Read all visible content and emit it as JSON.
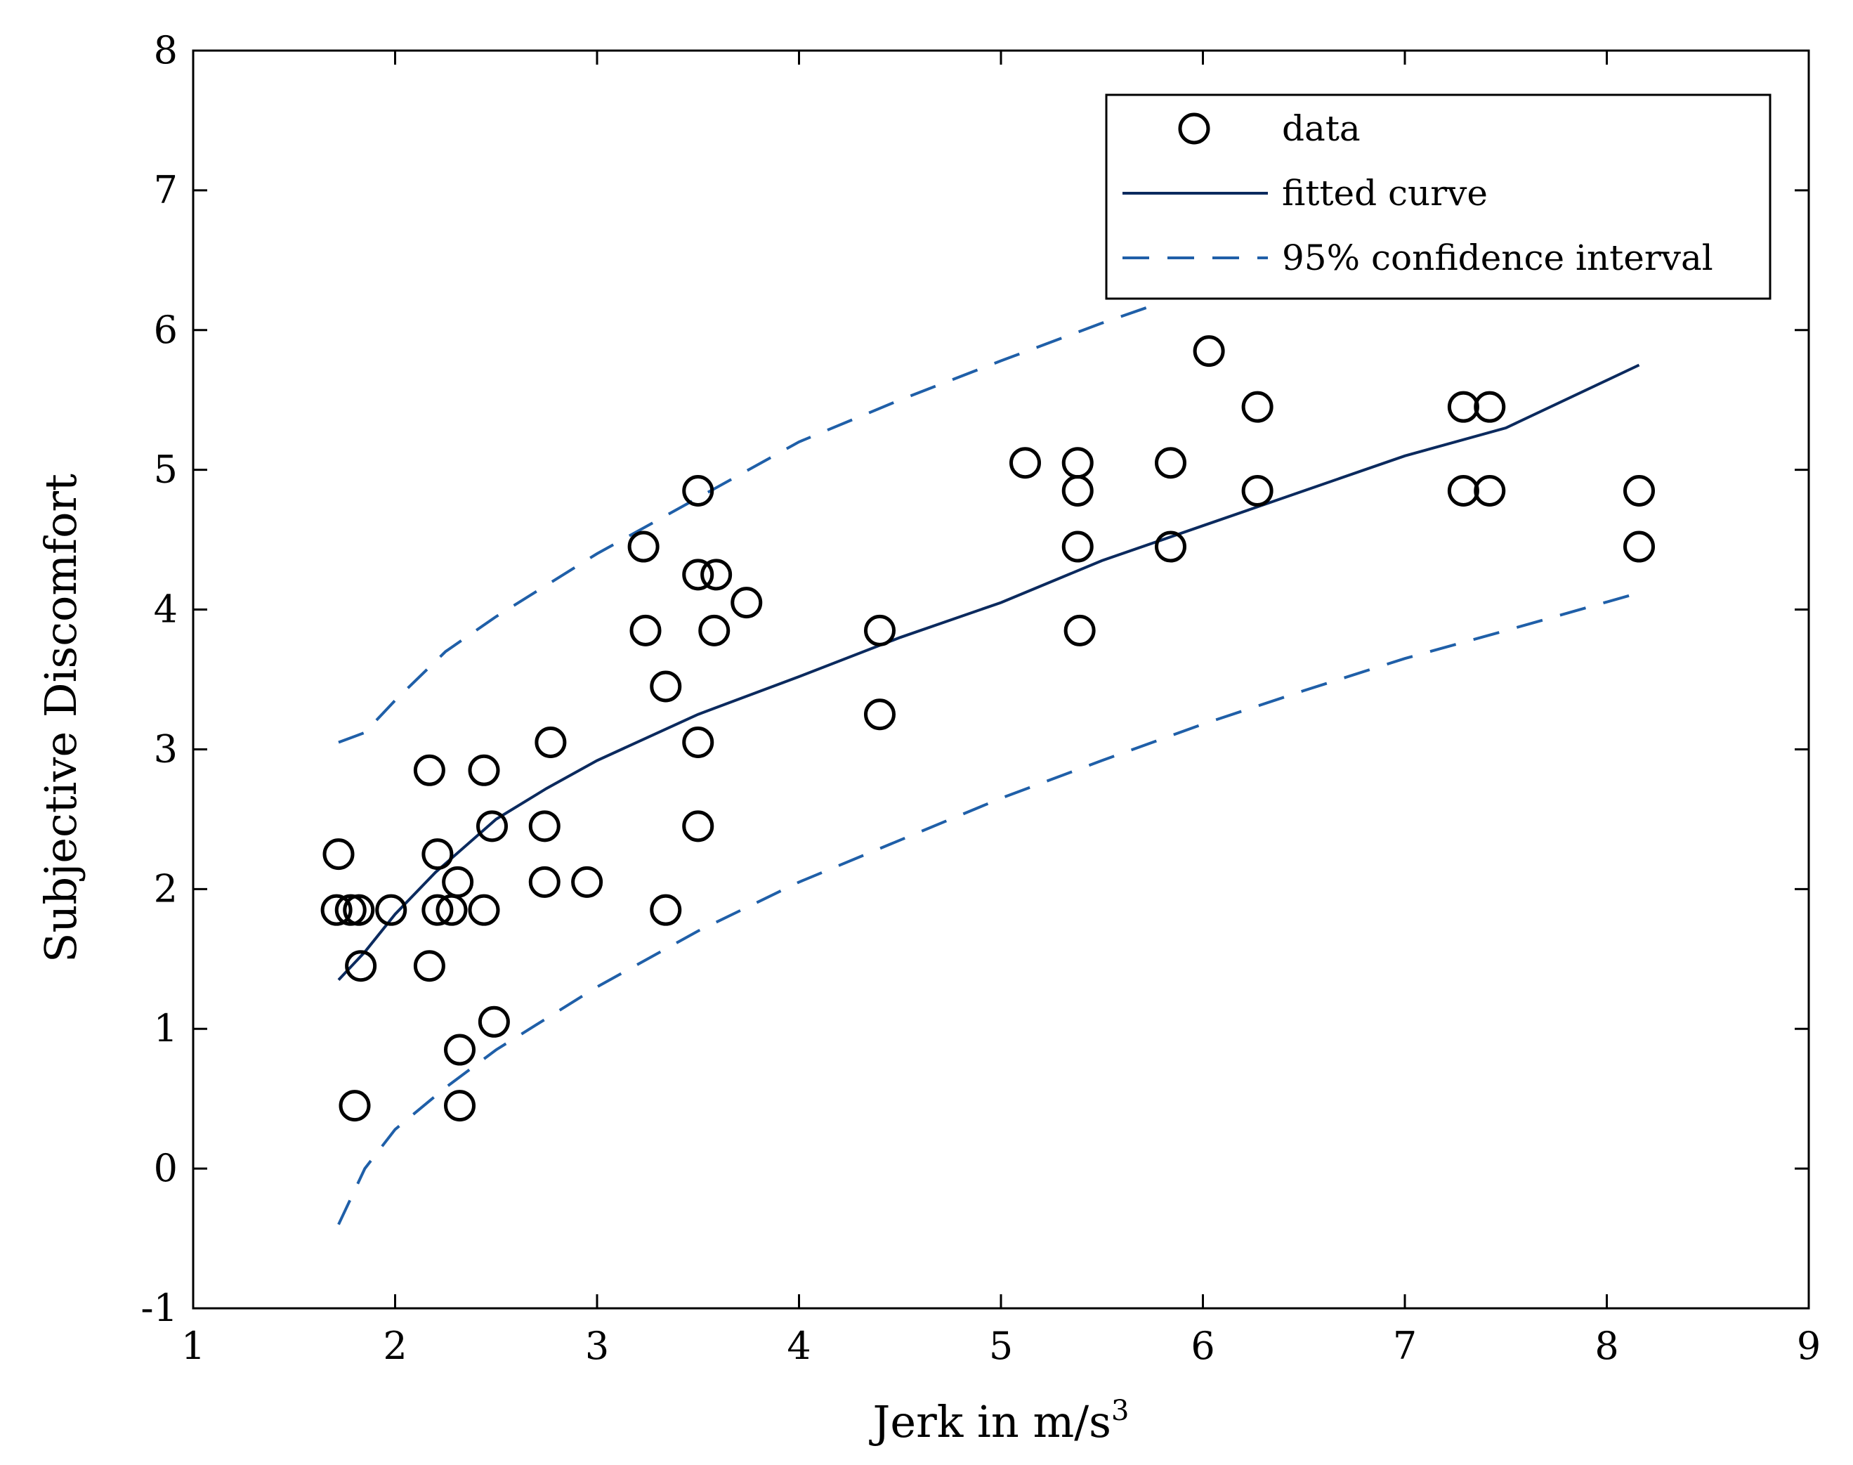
{
  "chart_data": {
    "type": "scatter",
    "title": "",
    "xlabel": "Jerk in m/s",
    "xlabel_superscript": "3",
    "ylabel": "Subjective Discomfort",
    "xlim": [
      1,
      9
    ],
    "ylim": [
      -1,
      8
    ],
    "xticks": [
      1,
      2,
      3,
      4,
      5,
      6,
      7,
      8,
      9
    ],
    "yticks": [
      -1,
      0,
      1,
      2,
      3,
      4,
      5,
      6,
      7,
      8
    ],
    "xtick_labels": [
      "1",
      "2",
      "3",
      "4",
      "5",
      "6",
      "7",
      "8",
      "9"
    ],
    "ytick_labels": [
      "-1",
      "0",
      "1",
      "2",
      "3",
      "4",
      "5",
      "6",
      "7",
      "8"
    ],
    "grid": false,
    "legend": {
      "placement": "top-right",
      "entries": [
        "data",
        "fitted curve",
        "95% confidence interval"
      ]
    },
    "colors": {
      "fit": "#0b2a5e",
      "ci": "#1f5fa8",
      "markers": "#000000"
    },
    "series": [
      {
        "name": "data",
        "style": "markers-circle",
        "points": [
          [
            1.72,
            2.25
          ],
          [
            1.71,
            1.85
          ],
          [
            1.78,
            1.85
          ],
          [
            1.82,
            1.85
          ],
          [
            1.98,
            1.85
          ],
          [
            1.83,
            1.45
          ],
          [
            1.8,
            0.45
          ],
          [
            2.17,
            2.85
          ],
          [
            2.21,
            2.25
          ],
          [
            2.21,
            1.85
          ],
          [
            2.28,
            1.85
          ],
          [
            2.31,
            2.05
          ],
          [
            2.17,
            1.45
          ],
          [
            2.32,
            0.85
          ],
          [
            2.32,
            0.45
          ],
          [
            2.44,
            2.85
          ],
          [
            2.48,
            2.45
          ],
          [
            2.44,
            1.85
          ],
          [
            2.49,
            1.05
          ],
          [
            2.74,
            2.45
          ],
          [
            2.77,
            3.05
          ],
          [
            2.74,
            2.05
          ],
          [
            2.95,
            2.05
          ],
          [
            3.23,
            4.45
          ],
          [
            3.24,
            3.85
          ],
          [
            3.34,
            3.45
          ],
          [
            3.34,
            1.85
          ],
          [
            3.5,
            4.85
          ],
          [
            3.5,
            4.25
          ],
          [
            3.59,
            4.25
          ],
          [
            3.58,
            3.85
          ],
          [
            3.74,
            4.05
          ],
          [
            3.5,
            3.05
          ],
          [
            3.5,
            2.45
          ],
          [
            4.4,
            3.85
          ],
          [
            4.4,
            3.25
          ],
          [
            5.12,
            5.05
          ],
          [
            5.38,
            5.05
          ],
          [
            5.38,
            4.85
          ],
          [
            5.38,
            4.45
          ],
          [
            5.39,
            3.85
          ],
          [
            5.84,
            5.05
          ],
          [
            5.84,
            4.45
          ],
          [
            6.03,
            5.85
          ],
          [
            6.27,
            5.45
          ],
          [
            6.27,
            4.85
          ],
          [
            7.29,
            5.45
          ],
          [
            7.42,
            5.45
          ],
          [
            7.29,
            4.85
          ],
          [
            7.42,
            4.85
          ],
          [
            8.16,
            4.85
          ],
          [
            8.16,
            4.45
          ]
        ]
      },
      {
        "name": "fitted curve",
        "style": "solid-line",
        "points": [
          [
            1.72,
            1.35
          ],
          [
            1.85,
            1.55
          ],
          [
            2.0,
            1.82
          ],
          [
            2.2,
            2.12
          ],
          [
            2.5,
            2.5
          ],
          [
            2.75,
            2.72
          ],
          [
            3.0,
            2.92
          ],
          [
            3.5,
            3.25
          ],
          [
            4.0,
            3.52
          ],
          [
            4.5,
            3.8
          ],
          [
            5.0,
            4.05
          ],
          [
            5.5,
            4.35
          ],
          [
            6.0,
            4.6
          ],
          [
            6.5,
            4.85
          ],
          [
            7.0,
            5.1
          ],
          [
            7.5,
            5.3
          ],
          [
            8.16,
            5.75
          ]
        ]
      },
      {
        "name": "95% confidence interval (upper)",
        "style": "dashed-line",
        "points": [
          [
            1.72,
            3.05
          ],
          [
            1.85,
            3.12
          ],
          [
            2.0,
            3.35
          ],
          [
            2.25,
            3.7
          ],
          [
            2.5,
            3.95
          ],
          [
            3.0,
            4.4
          ],
          [
            3.5,
            4.8
          ],
          [
            4.0,
            5.2
          ],
          [
            4.5,
            5.5
          ],
          [
            5.0,
            5.78
          ],
          [
            5.5,
            6.05
          ],
          [
            5.8,
            6.2
          ]
        ]
      },
      {
        "name": "95% confidence interval (lower)",
        "style": "dashed-line",
        "points": [
          [
            1.72,
            -0.4
          ],
          [
            1.85,
            0.0
          ],
          [
            2.0,
            0.28
          ],
          [
            2.25,
            0.58
          ],
          [
            2.5,
            0.85
          ],
          [
            3.0,
            1.3
          ],
          [
            3.5,
            1.7
          ],
          [
            4.0,
            2.05
          ],
          [
            4.5,
            2.35
          ],
          [
            5.0,
            2.65
          ],
          [
            5.5,
            2.92
          ],
          [
            6.0,
            3.18
          ],
          [
            6.5,
            3.42
          ],
          [
            7.0,
            3.65
          ],
          [
            7.5,
            3.85
          ],
          [
            8.16,
            4.12
          ]
        ]
      }
    ]
  }
}
